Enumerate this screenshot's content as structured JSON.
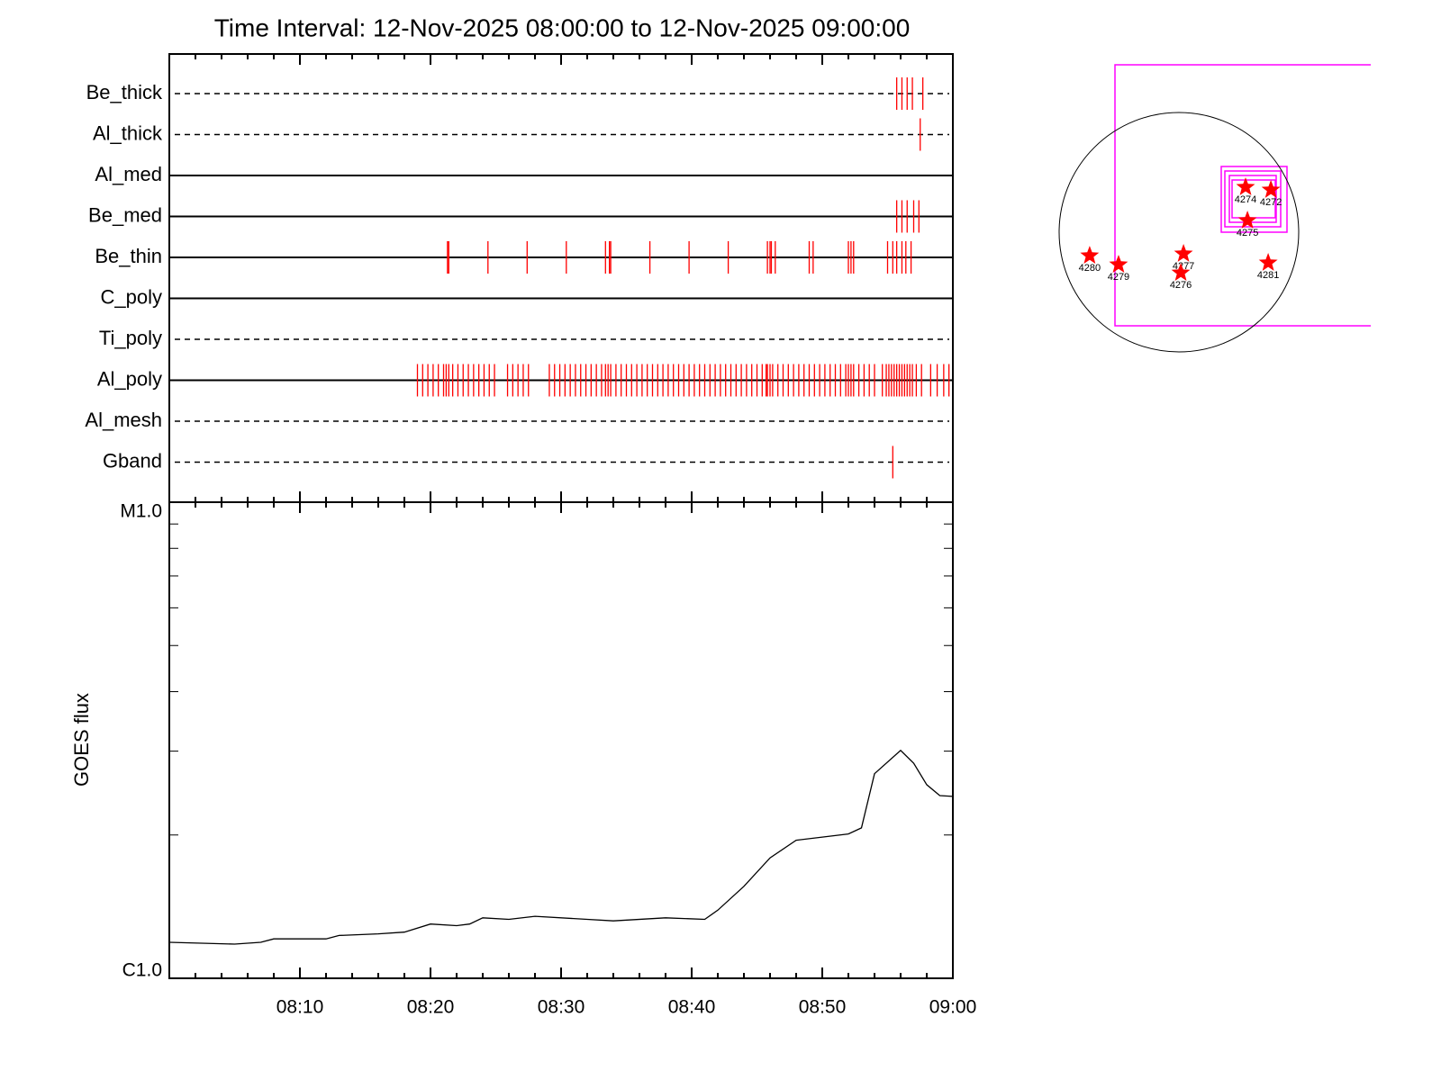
{
  "chart_data": [
    {
      "type": "event",
      "title": "Time Interval: 12-Nov-2025 08:00:00 to 12-Nov-2025 09:00:00",
      "categories": [
        "Be_thick",
        "Al_thick",
        "Al_med",
        "Be_med",
        "Be_thin",
        "C_poly",
        "Ti_poly",
        "Al_poly",
        "Al_mesh",
        "Gband"
      ],
      "line_styles": [
        "dashed",
        "dashed",
        "solid",
        "solid",
        "solid",
        "solid",
        "dashed",
        "solid",
        "dashed",
        "dashed"
      ],
      "color": "#ff0000",
      "events": [
        [
          55.7,
          56.1,
          56.5,
          56.9,
          57.7
        ],
        [
          57.5
        ],
        [],
        [
          55.7,
          56.1,
          56.5,
          57.0,
          57.4
        ],
        [
          21.3,
          21.4,
          24.4,
          27.4,
          30.4,
          33.4,
          33.7,
          33.8,
          36.8,
          39.8,
          42.8,
          45.8,
          46.0,
          46.1,
          46.4,
          49.0,
          49.3,
          52.0,
          52.2,
          52.4,
          55.0,
          55.4,
          55.7,
          56.1,
          56.4,
          56.8
        ],
        [],
        [],
        [
          19.0,
          19.4,
          19.8,
          20.2,
          20.6,
          21.0,
          21.2,
          21.4,
          21.7,
          22.1,
          22.5,
          22.9,
          23.3,
          23.7,
          24.1,
          24.5,
          24.9,
          25.9,
          26.3,
          26.7,
          27.1,
          27.5,
          29.1,
          29.5,
          29.9,
          30.3,
          30.7,
          31.1,
          31.5,
          31.9,
          32.3,
          32.7,
          33.1,
          33.4,
          33.6,
          33.8,
          34.2,
          34.6,
          35.0,
          35.4,
          35.8,
          36.2,
          36.6,
          37.0,
          37.4,
          37.8,
          38.2,
          38.6,
          39.0,
          39.4,
          39.8,
          40.2,
          40.6,
          41.0,
          41.4,
          41.8,
          42.2,
          42.6,
          43.0,
          43.4,
          43.8,
          44.2,
          44.6,
          45.0,
          45.4,
          45.7,
          45.8,
          46.0,
          46.2,
          46.6,
          47.0,
          47.4,
          47.8,
          48.2,
          48.6,
          49.0,
          49.4,
          49.8,
          50.2,
          50.6,
          51.0,
          51.4,
          51.8,
          52.0,
          52.2,
          52.4,
          52.8,
          53.2,
          53.6,
          54.0,
          54.6,
          54.9,
          55.1,
          55.3,
          55.5,
          55.7,
          55.9,
          56.1,
          56.3,
          56.5,
          56.7,
          56.9,
          57.2,
          57.6,
          58.3,
          58.8,
          59.3,
          59.7
        ],
        [],
        [
          55.4
        ]
      ],
      "xlim": [
        0,
        60
      ],
      "xticks": [
        10,
        20,
        30,
        40,
        50,
        60
      ],
      "xminor": [
        2,
        4,
        6,
        8,
        12,
        14,
        16,
        18,
        22,
        24,
        26,
        28,
        32,
        34,
        36,
        38,
        42,
        44,
        46,
        48,
        52,
        54,
        56,
        58
      ]
    },
    {
      "type": "line",
      "ylabel": "GOES flux",
      "color": "#000000",
      "x": [
        0,
        5,
        7,
        8,
        12,
        13,
        16,
        18,
        20,
        22,
        23,
        24,
        26,
        28,
        32,
        34,
        38,
        41,
        42,
        44,
        46,
        48,
        50,
        52,
        53,
        54,
        56,
        57,
        58,
        59,
        60
      ],
      "values": [
        1.19e-06,
        1.18e-06,
        1.19e-06,
        1.21e-06,
        1.21e-06,
        1.23e-06,
        1.24e-06,
        1.25e-06,
        1.3e-06,
        1.29e-06,
        1.3e-06,
        1.34e-06,
        1.33e-06,
        1.35e-06,
        1.33e-06,
        1.32e-06,
        1.34e-06,
        1.33e-06,
        1.39e-06,
        1.56e-06,
        1.79e-06,
        1.95e-06,
        1.98e-06,
        2.01e-06,
        2.07e-06,
        2.69e-06,
        3.01e-06,
        2.83e-06,
        2.55e-06,
        2.42e-06,
        2.41e-06
      ],
      "xlim": [
        0,
        60
      ],
      "xticks": [
        {
          "value": 10,
          "label": "08:10"
        },
        {
          "value": 20,
          "label": "08:20"
        },
        {
          "value": 30,
          "label": "08:30"
        },
        {
          "value": 40,
          "label": "08:40"
        },
        {
          "value": 50,
          "label": "08:50"
        },
        {
          "value": 60,
          "label": "09:00"
        }
      ],
      "xminor": [
        2,
        4,
        6,
        8,
        12,
        14,
        16,
        18,
        22,
        24,
        26,
        28,
        32,
        34,
        36,
        38,
        42,
        44,
        46,
        48,
        52,
        54,
        56,
        58
      ],
      "ylog": true,
      "ylim": [
        1e-06,
        1e-05
      ],
      "yticks": [
        {
          "value": 1e-06,
          "label": "C1.0"
        },
        {
          "value": 1e-05,
          "label": "M1.0"
        }
      ],
      "yminor": [
        2e-06,
        3e-06,
        4e-06,
        5e-06,
        6e-06,
        7e-06,
        8e-06,
        9e-06
      ]
    },
    {
      "type": "map",
      "sun_radius": 970,
      "color": "#ff0000",
      "regions": [
        "4280",
        "4279",
        "4277",
        "4276",
        "4281",
        "4274",
        "4272",
        "4275"
      ],
      "x": [
        -723,
        -489,
        37,
        15,
        723,
        540,
        745,
        555
      ],
      "y": [
        -190,
        -263,
        -175,
        -329,
        -248,
        365,
        343,
        95
      ]
    }
  ]
}
